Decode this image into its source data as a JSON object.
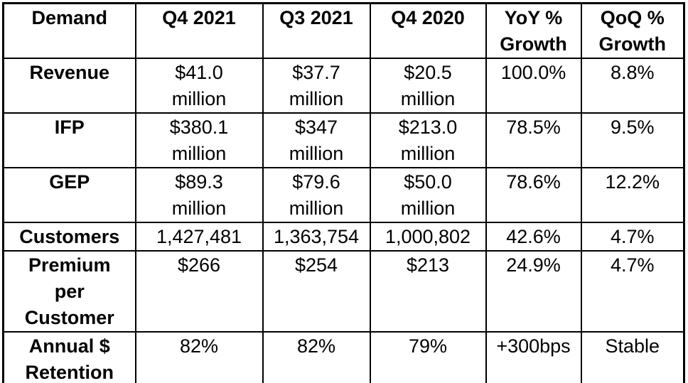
{
  "colors": {
    "background": "#ffffff",
    "border": "#000000",
    "text": "#000000"
  },
  "chart_data": {
    "type": "table",
    "columns": [
      "Demand",
      "Q4 2021",
      "Q3 2021",
      "Q4 2020",
      "YoY % Growth",
      "QoQ % Growth"
    ],
    "rows": [
      {
        "label": "Revenue",
        "values": [
          "$41.0 million",
          "$37.7 million",
          "$20.5 million",
          "100.0%",
          "8.8%"
        ]
      },
      {
        "label": "IFP",
        "values": [
          "$380.1 million",
          "$347 million",
          "$213.0 million",
          "78.5%",
          "9.5%"
        ]
      },
      {
        "label": "GEP",
        "values": [
          "$89.3 million",
          "$79.6 million",
          "$50.0 million",
          "78.6%",
          "12.2%"
        ]
      },
      {
        "label": "Customers",
        "values": [
          "1,427,481",
          "1,363,754",
          "1,000,802",
          "42.6%",
          "4.7%"
        ]
      },
      {
        "label": "Premium per Customer",
        "values": [
          "$266",
          "$254",
          "$213",
          "24.9%",
          "4.7%"
        ]
      },
      {
        "label": "Annual $ Retention",
        "values": [
          "82%",
          "82%",
          "79%",
          "+300bps",
          "Stable"
        ]
      }
    ],
    "layout": {
      "grid": "all-borders",
      "header_row": true,
      "bold_first_column": true,
      "text_align": "center"
    }
  },
  "table": {
    "header": [
      "Demand",
      "Q4 2021",
      "Q3 2021",
      "Q4 2020",
      "YoY %\nGrowth",
      "QoQ %\nGrowth"
    ],
    "cells": [
      [
        "Revenue",
        "$41.0\nmillion",
        "$37.7\nmillion",
        "$20.5\nmillion",
        "100.0%",
        "8.8%"
      ],
      [
        "IFP",
        "$380.1\nmillion",
        "$347\nmillion",
        "$213.0\nmillion",
        "78.5%",
        "9.5%"
      ],
      [
        "GEP",
        "$89.3\nmillion",
        "$79.6\nmillion",
        "$50.0\nmillion",
        "78.6%",
        "12.2%"
      ],
      [
        "Customers",
        "1,427,481",
        "1,363,754",
        "1,000,802",
        "42.6%",
        "4.7%"
      ],
      [
        "Premium\nper\nCustomer",
        "$266",
        "$254",
        "$213",
        "24.9%",
        "4.7%"
      ],
      [
        "Annual $\nRetention",
        "82%",
        "82%",
        "79%",
        "+300bps",
        "Stable"
      ]
    ]
  }
}
